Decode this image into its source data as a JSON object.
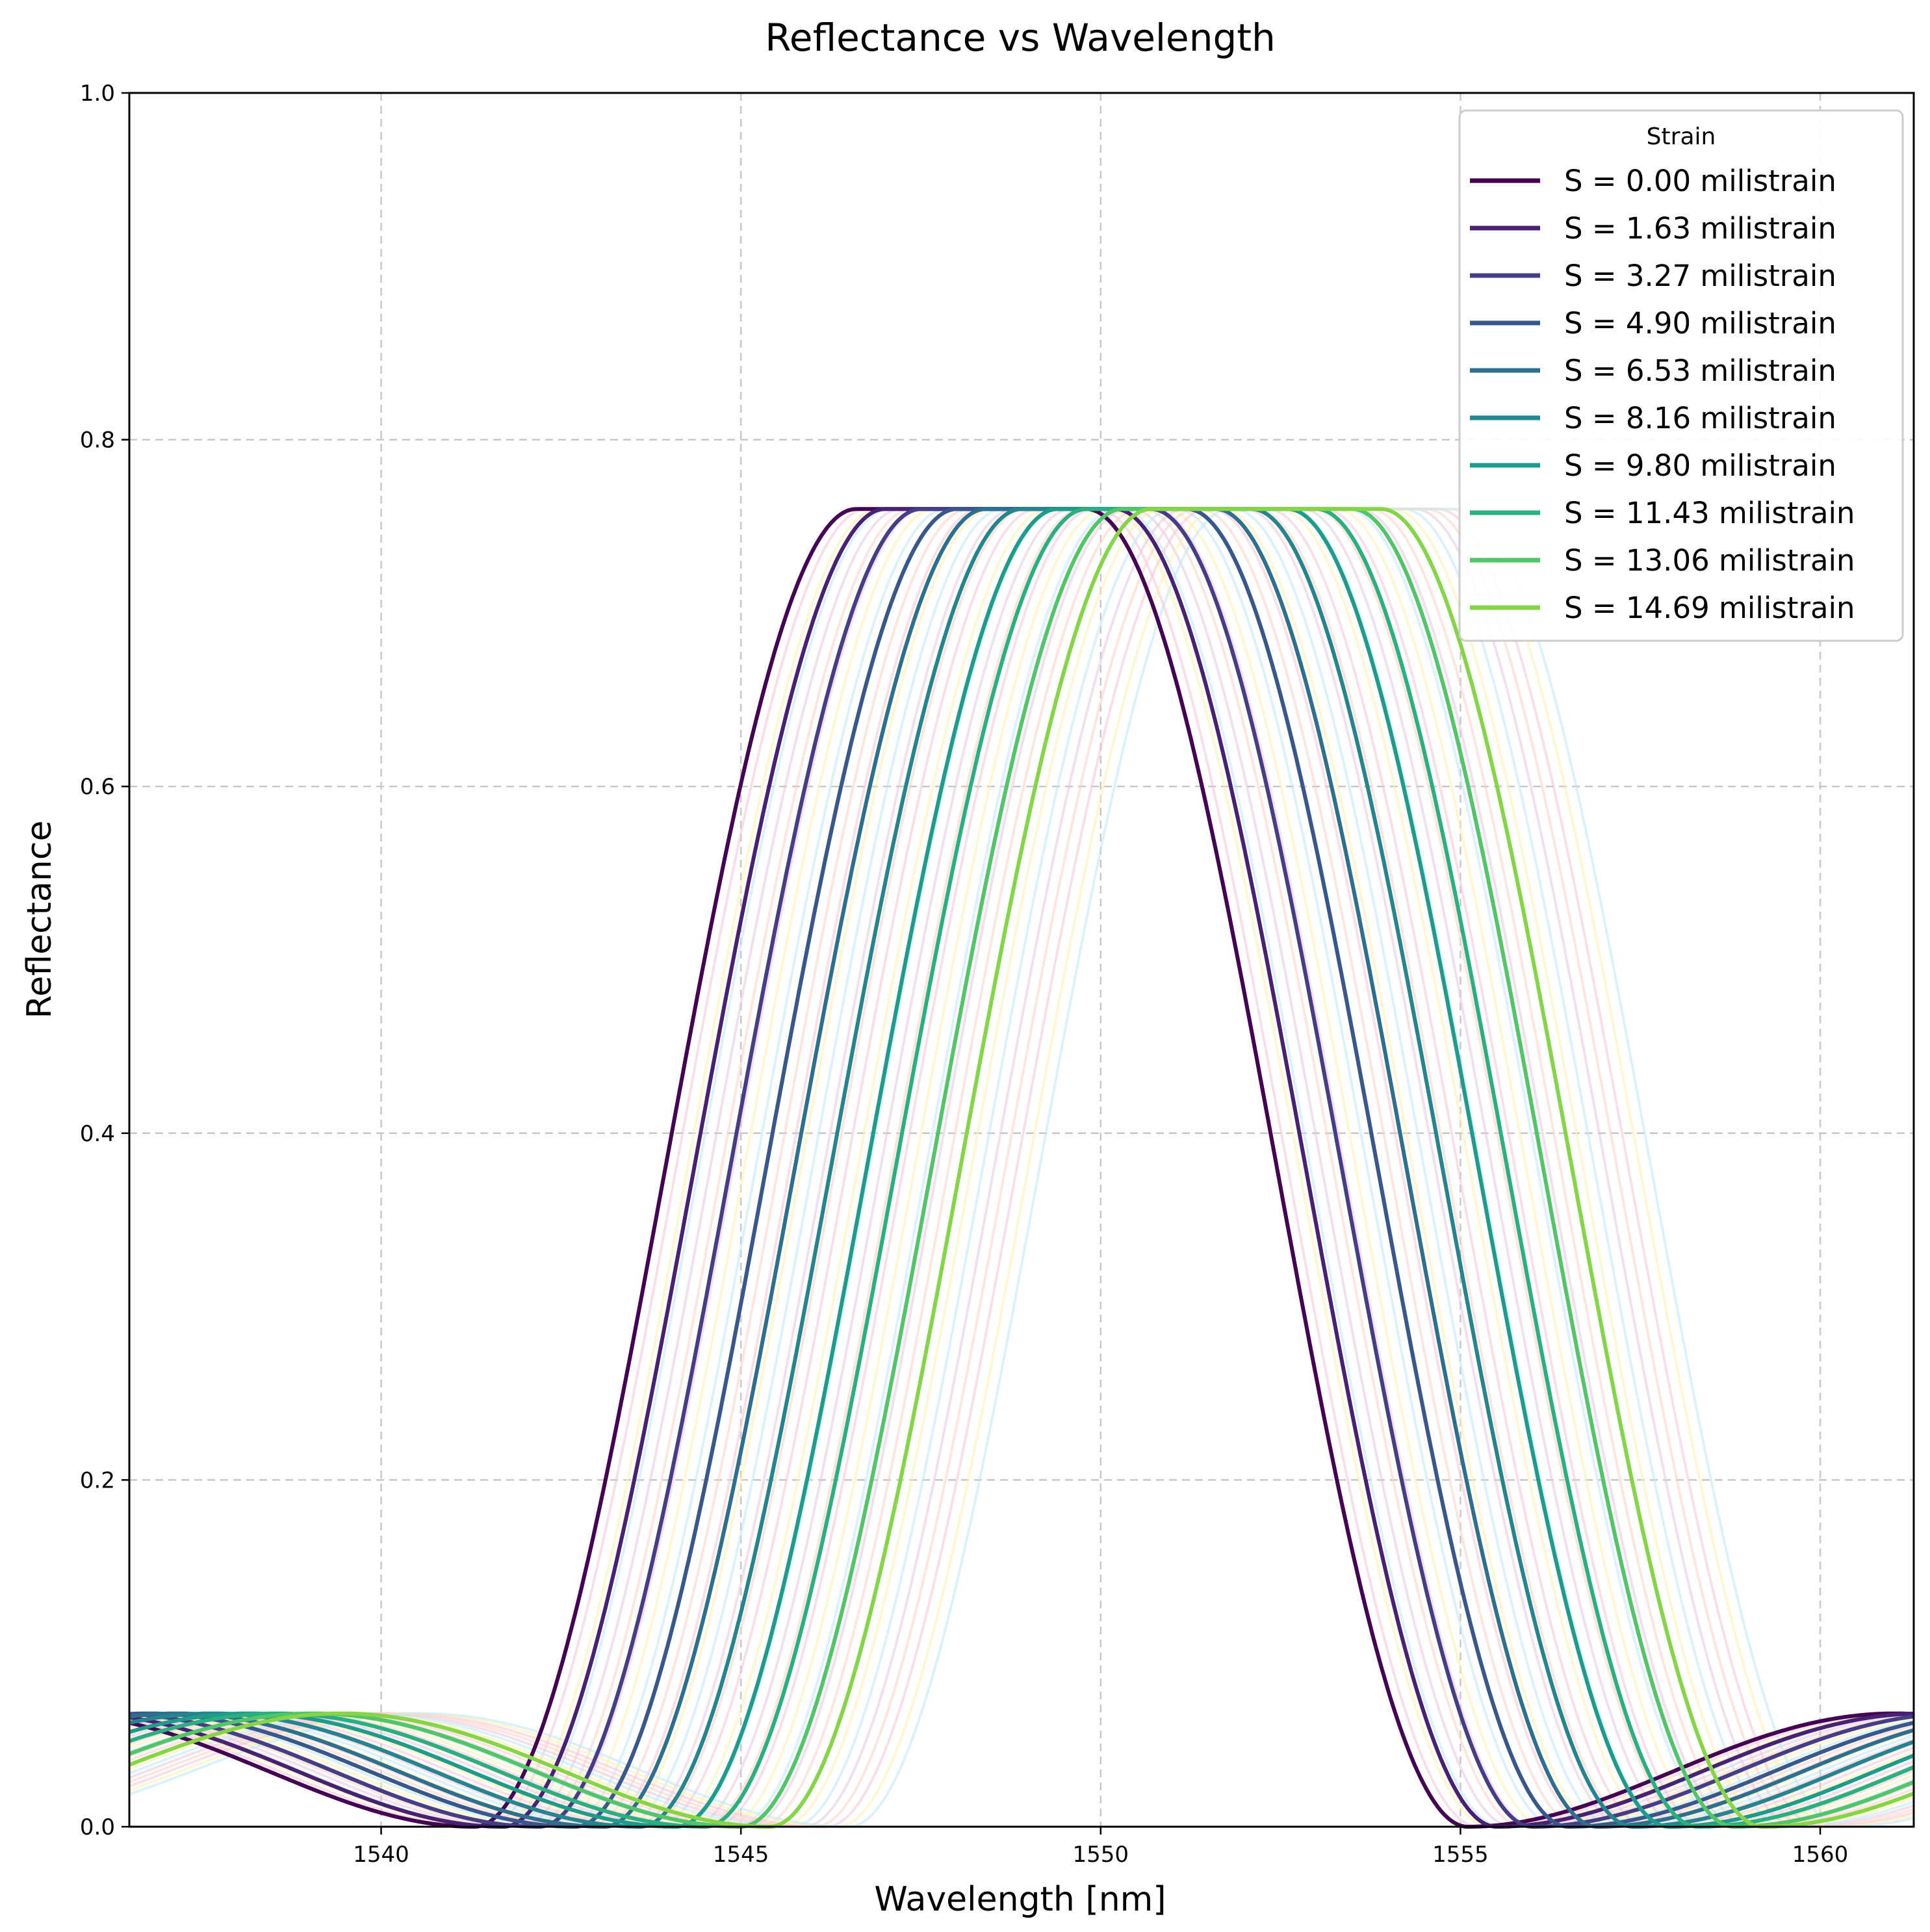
{
  "chart_data": {
    "type": "line",
    "title": "Reflectance vs Wavelength",
    "xlabel": "Wavelength [nm]",
    "ylabel": "Reflectance",
    "xlim": [
      1536.5,
      1561.3
    ],
    "ylim": [
      0.0,
      1.0
    ],
    "xticks": [
      "1540",
      "1545",
      "1550",
      "1555",
      "1560"
    ],
    "yticks": [
      "0.0",
      "0.2",
      "0.4",
      "0.6",
      "0.8",
      "1.0"
    ],
    "grid": true,
    "legend": {
      "title": "Strain",
      "placement": "top-right"
    },
    "peak_reflectance": 0.76,
    "spectrum_half_width_nm": 6.8,
    "spectrum_first_zero_offset_nm": 8.7,
    "side_lobe_peak": 0.08,
    "series": [
      {
        "name": "S = 0.00 milistrain",
        "center_nm": 1548.2,
        "color": "#440154"
      },
      {
        "name": "S = 1.63 milistrain",
        "center_nm": 1548.6,
        "color": "#482173"
      },
      {
        "name": "S = 3.27 milistrain",
        "center_nm": 1549.1,
        "color": "#433e85"
      },
      {
        "name": "S = 4.90 milistrain",
        "center_nm": 1549.6,
        "color": "#38588c"
      },
      {
        "name": "S = 6.53 milistrain",
        "center_nm": 1550.0,
        "color": "#2d708e"
      },
      {
        "name": "S = 8.16 milistrain",
        "center_nm": 1550.5,
        "color": "#25858e"
      },
      {
        "name": "S = 9.80 milistrain",
        "center_nm": 1551.0,
        "color": "#1e9b8a"
      },
      {
        "name": "S = 11.43 milistrain",
        "center_nm": 1551.4,
        "color": "#2ab07f"
      },
      {
        "name": "S = 13.06 milistrain",
        "center_nm": 1551.9,
        "color": "#52c569"
      },
      {
        "name": "S = 14.69 milistrain",
        "center_nm": 1552.3,
        "color": "#86d549"
      }
    ],
    "background_series": {
      "first_center_nm": 1548.35,
      "last_center_nm": 1553.4,
      "count": 33,
      "colors": [
        "#f4c6d6",
        "#fdf0b0",
        "#bfe8f6",
        "#e6c9dc",
        "#f9d2c5"
      ]
    }
  }
}
